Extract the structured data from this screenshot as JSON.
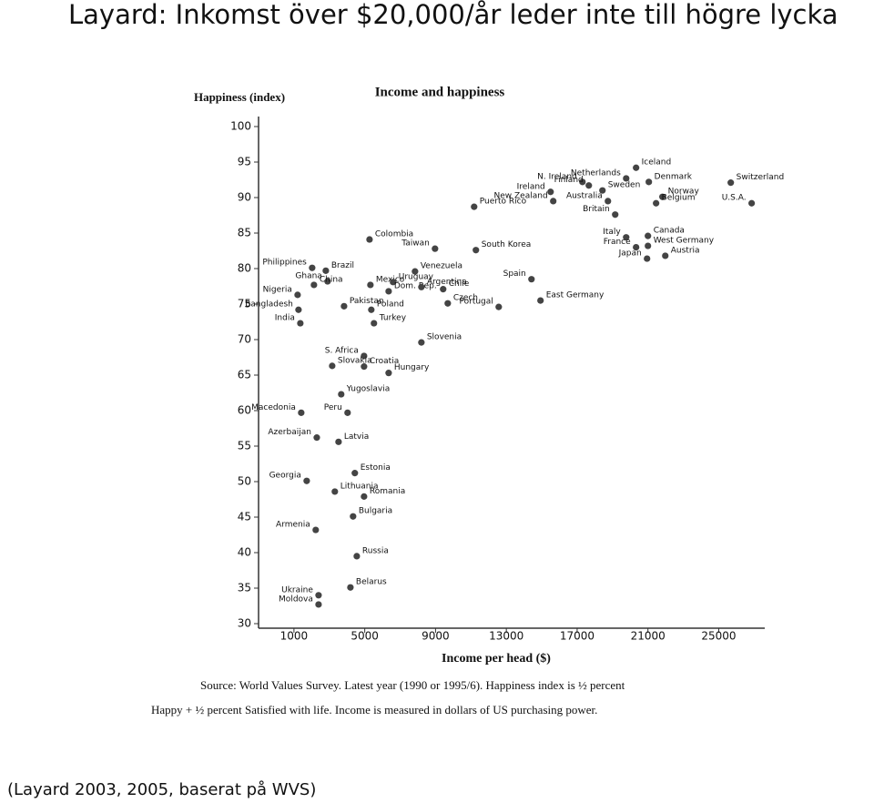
{
  "title": "Layard: Inkomst över $20,000/år leder inte till högre lycka",
  "footer": "(Layard 2003, 2005, baserat på WVS)",
  "chart_data": {
    "type": "scatter",
    "title": "Income and happiness",
    "y_label": "Happiness (index)",
    "x_label": "Income per head ($)",
    "note": [
      "Source: World Values Survey. Latest year (1990 or 1995/6). Happiness index is ½ percent",
      "Happy + ½ percent Satisfied with life. Income is measured in dollars of US purchasing power."
    ],
    "color": "#444444",
    "xlim": [
      -1000,
      27600
    ],
    "ylim": [
      30,
      100
    ],
    "xticks": [
      1000,
      5000,
      9000,
      13000,
      17000,
      21000,
      25000
    ],
    "yticks": [
      30,
      35,
      40,
      45,
      50,
      55,
      60,
      65,
      70,
      75,
      80,
      85,
      90,
      95,
      100
    ],
    "labels": [
      "Philippines",
      "Brazil",
      "Ghana",
      "China",
      "Nigeria",
      "Bangladesh",
      "India",
      "Pakistan",
      "Colombia",
      "Mexico",
      "Venezuela",
      "Uruguay",
      "Dom. Rep.",
      "Argentina",
      "Chile",
      "Poland",
      "Czech",
      "Turkey",
      "Slovenia",
      "Taiwan",
      "South Korea",
      "Puerto Rico",
      "Portugal",
      "Spain",
      "East Germany",
      "S. Africa",
      "Slovakia",
      "Croatia",
      "Hungary",
      "Yugoslavia",
      "Macedonia",
      "Peru",
      "Azerbaijan",
      "Latvia",
      "Estonia",
      "Georgia",
      "Lithuania",
      "Romania",
      "Bulgaria",
      "Armenia",
      "Russia",
      "Belarus",
      "Ukraine",
      "Moldova",
      "N. Ireland",
      "Ireland",
      "Netherlands",
      "Iceland",
      "Denmark",
      "Switzerland",
      "Finland",
      "Sweden",
      "Norway",
      "New Zealand",
      "Australia",
      "Belgium",
      "U.S.A.",
      "Britain",
      "Canada",
      "Italy",
      "France",
      "West Germany",
      "Japan",
      "Austria"
    ],
    "x": [
      2028,
      2800,
      2900,
      2130,
      1206,
      1257,
      1360,
      3830,
      5270,
      5320,
      7840,
      6600,
      6350,
      8200,
      9430,
      5370,
      9690,
      5520,
      8200,
      8970,
      11280,
      11180,
      12570,
      14420,
      14930,
      4960,
      3160,
      4960,
      6350,
      3670,
      1410,
      4030,
      2290,
      3520,
      4440,
      1720,
      3310,
      4960,
      4340,
      2230,
      4550,
      4190,
      2390,
      2390,
      17300,
      15500,
      19770,
      20330,
      21050,
      25680,
      17660,
      18430,
      21820,
      15650,
      18740,
      21460,
      26860,
      19150,
      21000,
      19770,
      20330,
      21000,
      20950,
      21980
    ],
    "values": [
      80.1,
      79.7,
      78.2,
      77.7,
      76.3,
      74.2,
      72.3,
      74.7,
      84.1,
      77.7,
      79.6,
      78.1,
      76.8,
      77.4,
      77.1,
      74.2,
      75.1,
      72.3,
      69.6,
      82.8,
      82.6,
      88.7,
      74.6,
      78.5,
      75.5,
      67.7,
      66.3,
      66.2,
      65.3,
      62.3,
      59.7,
      59.7,
      56.2,
      55.6,
      51.2,
      50.1,
      48.6,
      47.9,
      45.1,
      43.2,
      39.5,
      35.1,
      34.0,
      32.7,
      92.2,
      90.8,
      92.7,
      94.2,
      92.2,
      92.1,
      91.7,
      91.0,
      90.1,
      89.5,
      89.5,
      89.2,
      89.2,
      87.6,
      84.6,
      84.4,
      83.0,
      83.2,
      81.4,
      81.8
    ]
  }
}
